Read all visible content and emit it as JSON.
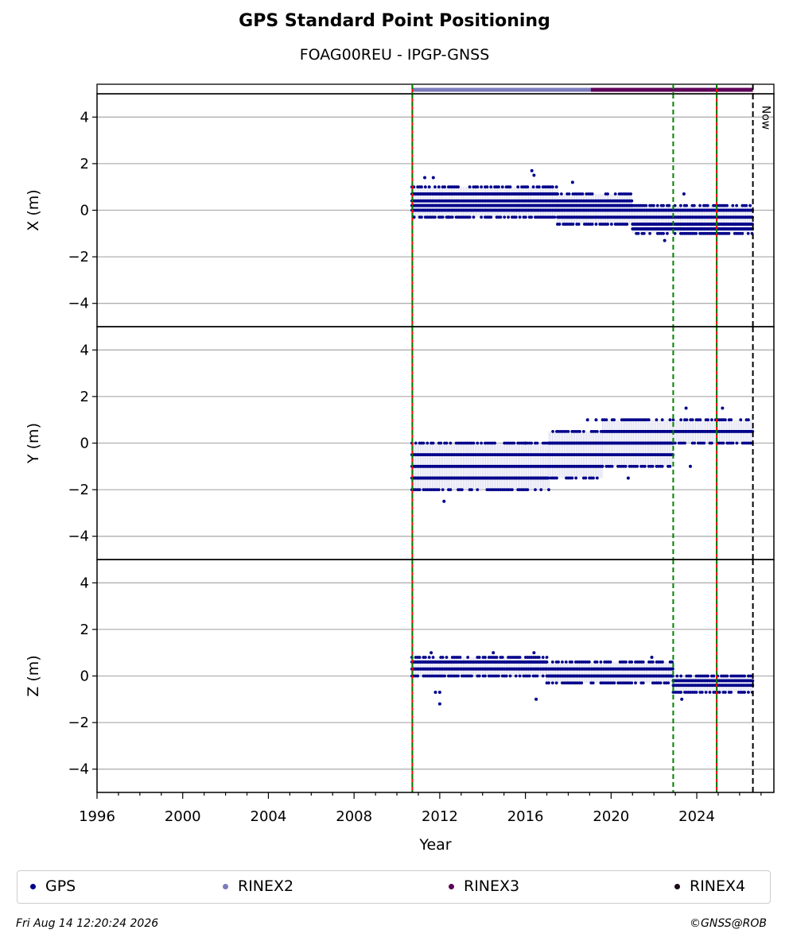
{
  "title": "GPS Standard Point Positioning",
  "subtitle": "FOAG00REU - IPGP-GNSS",
  "footer": {
    "timestamp": "Fri Aug 14 12:20:24 2026",
    "copyright": "©GNSS@ROB"
  },
  "colors": {
    "gps": "#00008b",
    "rinex2": "#7b7bbd",
    "rinex3": "#5e0058",
    "rinex4": "#1a0a1a",
    "event_red": "#ff0000",
    "event_green": "#007f00",
    "grid": "#b0b0b0"
  },
  "legend": [
    {
      "label": "GPS",
      "color": "#00008b"
    },
    {
      "label": "RINEX2",
      "color": "#7b7bbd"
    },
    {
      "label": "RINEX3",
      "color": "#5e0058"
    },
    {
      "label": "RINEX4",
      "color": "#1a0a1a"
    }
  ],
  "chart_data": {
    "type": "scatter",
    "xlabel": "Year",
    "xlim": [
      1996,
      2027.6
    ],
    "xticks": [
      1996,
      2000,
      2004,
      2008,
      2012,
      2016,
      2020,
      2024
    ],
    "ylim": [
      -5,
      5
    ],
    "yticks": [
      4,
      2,
      0,
      -2,
      -4
    ],
    "grid": true,
    "legend_position": "bottom",
    "now_label": "Now",
    "now_x": 2026.62,
    "event_lines": [
      {
        "x": 2010.72,
        "style": "red-green-dashed"
      },
      {
        "x": 2022.9,
        "style": "green-dashed"
      },
      {
        "x": 2024.93,
        "style": "red-green-dashed"
      }
    ],
    "rinex_availability": [
      {
        "name": "RINEX2",
        "start": 2010.72,
        "end": 2019.05
      },
      {
        "name": "RINEX3",
        "start": 2019.05,
        "end": 2026.62
      }
    ],
    "panels": [
      {
        "ylabel": "X (m)",
        "series": [
          {
            "x_start": 2010.7,
            "x_end": 2017.5,
            "values": [
              -0.3,
              0.0,
              0.2,
              0.4,
              0.7,
              1.0
            ]
          },
          {
            "x_start": 2017.5,
            "x_end": 2021.0,
            "values": [
              -0.6,
              -0.3,
              0.0,
              0.2,
              0.4,
              0.7
            ]
          },
          {
            "x_start": 2021.0,
            "x_end": 2026.62,
            "values": [
              -1.0,
              -0.8,
              -0.6,
              -0.3,
              0.0,
              0.2
            ]
          }
        ],
        "outliers": [
          [
            2011.3,
            1.4
          ],
          [
            2011.7,
            1.4
          ],
          [
            2016.3,
            1.7
          ],
          [
            2016.4,
            1.5
          ],
          [
            2018.2,
            1.2
          ],
          [
            2023.4,
            0.7
          ],
          [
            2022.5,
            -1.3
          ],
          [
            2010.8,
            -0.3
          ],
          [
            2012.4,
            -0.3
          ]
        ]
      },
      {
        "ylabel": "Y (m)",
        "series": [
          {
            "x_start": 2010.7,
            "x_end": 2017.1,
            "values": [
              -2.0,
              -1.5,
              -1.0,
              -0.5,
              0.0
            ]
          },
          {
            "x_start": 2017.1,
            "x_end": 2019.6,
            "values": [
              -1.5,
              -1.0,
              -0.5,
              0.0,
              0.5
            ]
          },
          {
            "x_start": 2019.6,
            "x_end": 2022.9,
            "values": [
              -1.0,
              -0.5,
              0.0,
              0.5,
              1.0
            ]
          },
          {
            "x_start": 2022.9,
            "x_end": 2026.62,
            "values": [
              0.0,
              0.5,
              1.0
            ]
          }
        ],
        "outliers": [
          [
            2012.2,
            -2.5
          ],
          [
            2023.7,
            -1.0
          ],
          [
            2018.9,
            1.0
          ],
          [
            2019.3,
            1.0
          ],
          [
            2023.5,
            1.5
          ],
          [
            2025.2,
            1.5
          ],
          [
            2016.0,
            0.0
          ],
          [
            2020.8,
            -1.5
          ]
        ]
      },
      {
        "ylabel": "Z (m)",
        "series": [
          {
            "x_start": 2010.7,
            "x_end": 2017.0,
            "values": [
              0.0,
              0.3,
              0.6,
              0.8
            ]
          },
          {
            "x_start": 2017.0,
            "x_end": 2022.9,
            "values": [
              -0.3,
              0.0,
              0.3,
              0.6
            ]
          },
          {
            "x_start": 2022.9,
            "x_end": 2026.62,
            "values": [
              -0.7,
              -0.4,
              -0.2,
              0.0
            ]
          }
        ],
        "outliers": [
          [
            2012.0,
            -1.2
          ],
          [
            2016.5,
            -1.0
          ],
          [
            2011.8,
            -0.7
          ],
          [
            2012.0,
            -0.7
          ],
          [
            2011.6,
            1.0
          ],
          [
            2014.5,
            1.0
          ],
          [
            2016.4,
            1.0
          ],
          [
            2021.9,
            0.8
          ],
          [
            2023.3,
            -1.0
          ]
        ]
      }
    ]
  }
}
